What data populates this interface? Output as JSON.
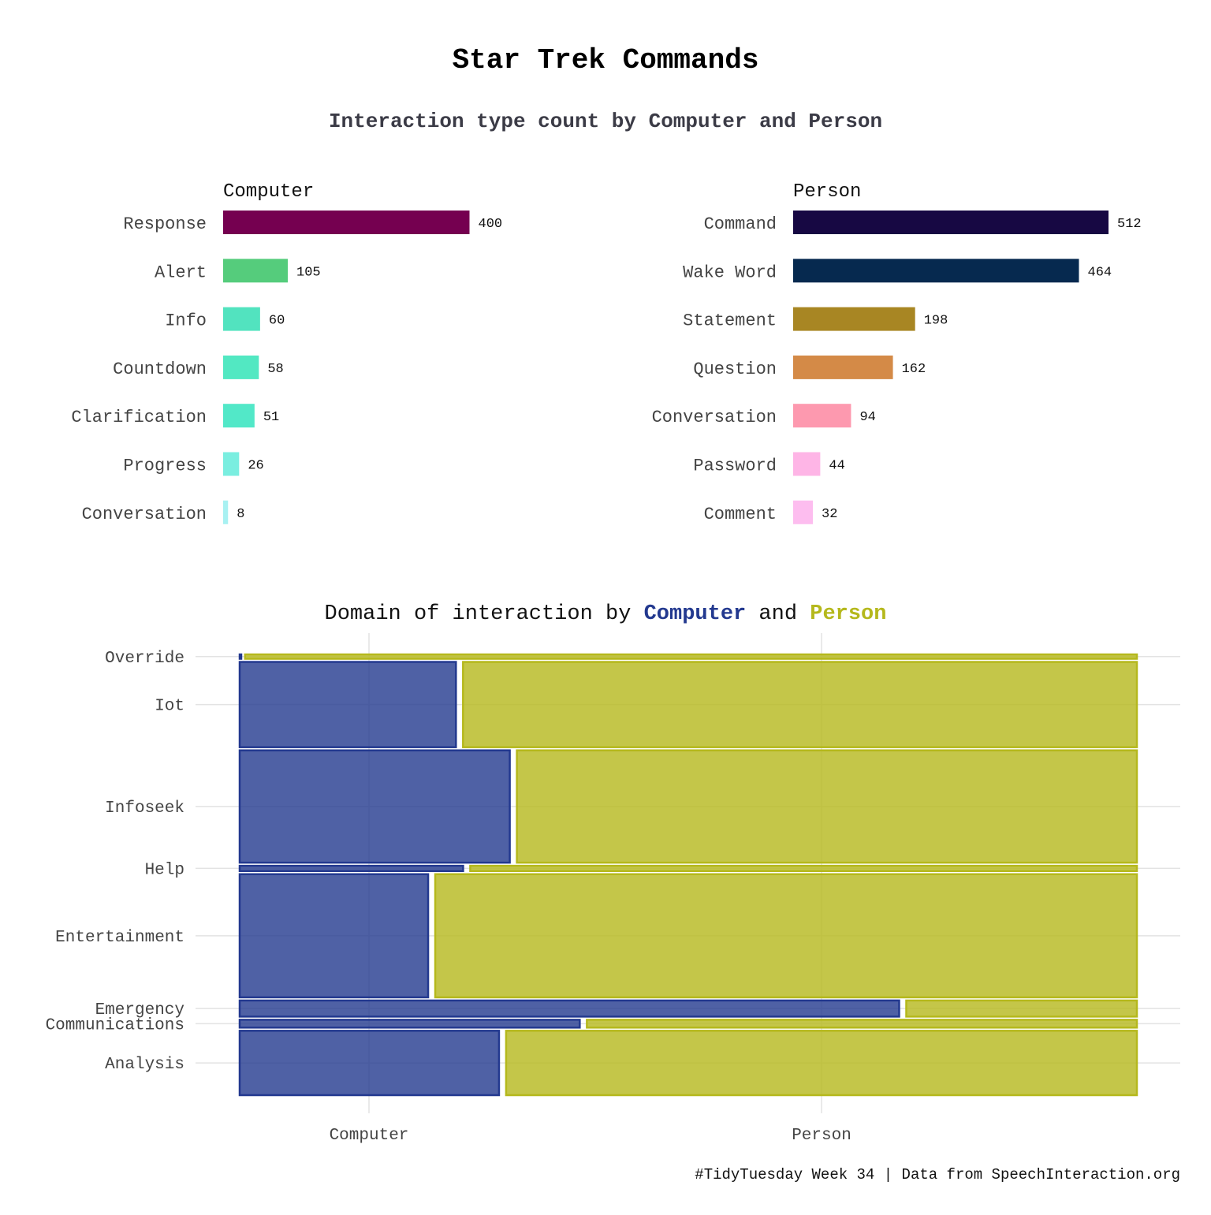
{
  "title": "Star Trek Commands",
  "subtitle": "Interaction type count by Computer and Person",
  "caption": "#TidyTuesday Week 34 | Data from SpeechInteraction.org",
  "colors": {
    "computer": "#23398f",
    "person": "#b5b81c"
  },
  "chart_data": [
    {
      "type": "bar",
      "orientation": "horizontal",
      "facet": "Computer",
      "categories": [
        "Response",
        "Alert",
        "Info",
        "Countdown",
        "Clarification",
        "Progress",
        "Conversation"
      ],
      "values": [
        400,
        105,
        60,
        58,
        51,
        26,
        8
      ],
      "colors": [
        "#750050",
        "#55cc7c",
        "#52e3bf",
        "#52e8c2",
        "#52e8c8",
        "#7aeee0",
        "#a8f1f2"
      ]
    },
    {
      "type": "bar",
      "orientation": "horizontal",
      "facet": "Person",
      "categories": [
        "Command",
        "Wake Word",
        "Statement",
        "Question",
        "Conversation",
        "Password",
        "Comment"
      ],
      "values": [
        512,
        464,
        198,
        162,
        94,
        44,
        32
      ],
      "colors": [
        "#170843",
        "#06294f",
        "#a88623",
        "#d48a47",
        "#fd99af",
        "#feb5e6",
        "#fdbdef"
      ]
    },
    {
      "type": "mosaic",
      "title_parts": [
        "Domain of interaction by ",
        "Computer",
        " and ",
        "Person"
      ],
      "x_categories": [
        "Computer",
        "Person"
      ],
      "series": [
        "Computer",
        "Person"
      ],
      "rows": [
        {
          "label": "Override",
          "share": 0.01,
          "computer_frac": 0.002
        },
        {
          "label": "Iot",
          "share": 0.196,
          "computer_frac": 0.245
        },
        {
          "label": "Infoseek",
          "share": 0.258,
          "computer_frac": 0.305
        },
        {
          "label": "Help",
          "share": 0.012,
          "computer_frac": 0.253
        },
        {
          "label": "Entertainment",
          "share": 0.283,
          "computer_frac": 0.214
        },
        {
          "label": "Emergency",
          "share": 0.037,
          "computer_frac": 0.739
        },
        {
          "label": "Communications",
          "share": 0.018,
          "computer_frac": 0.383
        },
        {
          "label": "Analysis",
          "share": 0.148,
          "computer_frac": 0.293
        }
      ]
    }
  ]
}
